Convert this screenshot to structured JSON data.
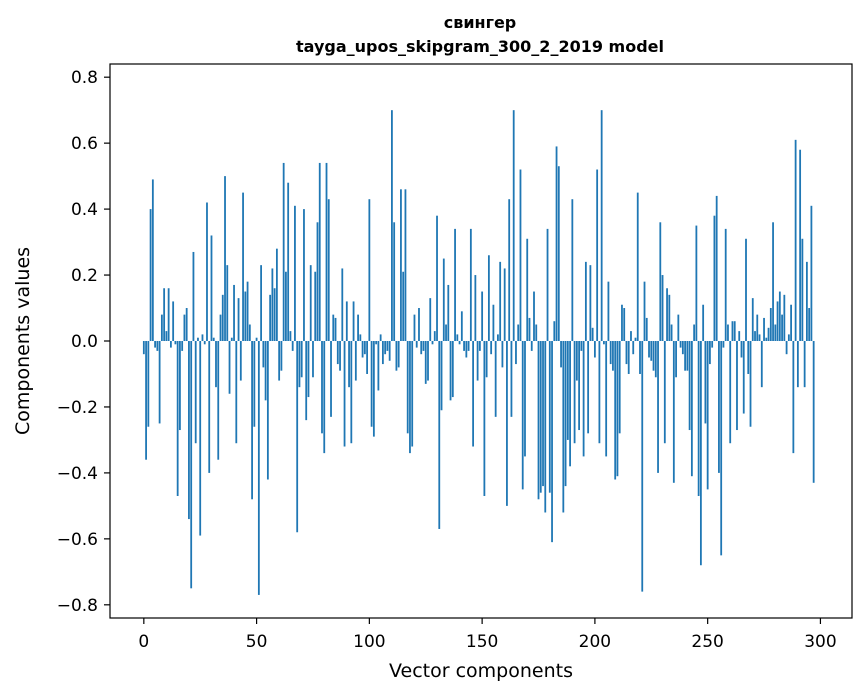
{
  "chart_data": {
    "type": "bar",
    "title_line1": "свингер",
    "title_line2": "tayga_upos_skipgram_300_2_2019 model",
    "xlabel": "Vector components",
    "ylabel": "Components values",
    "xlim": [
      -15,
      314
    ],
    "ylim": [
      -0.84,
      0.84
    ],
    "x_ticks": [
      0,
      50,
      100,
      150,
      200,
      250,
      300
    ],
    "x_tick_labels": [
      "0",
      "50",
      "100",
      "150",
      "200",
      "250",
      "300"
    ],
    "y_ticks": [
      0.8,
      0.6,
      0.4,
      0.2,
      0.0,
      -0.2,
      -0.4,
      -0.6,
      -0.8
    ],
    "y_tick_labels": [
      "0.8",
      "0.6",
      "0.4",
      "0.2",
      "0.0",
      "−0.2",
      "−0.4",
      "−0.6",
      "−0.8"
    ],
    "bar_color": "#1f77b4",
    "grid": false,
    "values": [
      -0.04,
      -0.36,
      -0.26,
      0.4,
      0.49,
      -0.02,
      -0.03,
      -0.25,
      0.08,
      0.16,
      0.03,
      0.16,
      -0.02,
      0.12,
      -0.01,
      -0.47,
      -0.27,
      -0.03,
      0.08,
      0.1,
      -0.54,
      -0.75,
      0.27,
      -0.31,
      0.01,
      -0.59,
      0.02,
      -0.01,
      0.42,
      -0.4,
      0.32,
      0.01,
      -0.14,
      -0.36,
      0.08,
      0.14,
      0.5,
      0.23,
      -0.16,
      0.01,
      0.17,
      -0.31,
      0.13,
      -0.12,
      0.45,
      0.15,
      0.18,
      0.05,
      -0.48,
      -0.26,
      0.01,
      -0.77,
      0.23,
      -0.08,
      -0.18,
      -0.42,
      0.14,
      0.22,
      0.16,
      0.28,
      -0.12,
      -0.09,
      0.54,
      0.21,
      0.48,
      0.03,
      -0.03,
      0.41,
      -0.58,
      -0.14,
      -0.11,
      0.4,
      -0.24,
      -0.17,
      0.23,
      -0.11,
      0.21,
      0.36,
      0.54,
      -0.28,
      -0.34,
      0.54,
      0.43,
      -0.23,
      0.08,
      0.07,
      -0.07,
      -0.09,
      0.22,
      -0.32,
      0.12,
      -0.14,
      -0.31,
      0.12,
      -0.12,
      0.08,
      0.02,
      -0.05,
      -0.04,
      -0.1,
      0.43,
      -0.26,
      -0.29,
      -0.01,
      -0.15,
      0.02,
      -0.07,
      -0.04,
      -0.03,
      -0.06,
      0.7,
      0.36,
      -0.09,
      -0.08,
      0.46,
      0.21,
      0.46,
      -0.28,
      -0.34,
      -0.32,
      0.08,
      -0.02,
      0.1,
      -0.04,
      -0.03,
      -0.13,
      -0.12,
      0.13,
      -0.01,
      0.03,
      0.38,
      -0.57,
      -0.21,
      0.25,
      0.05,
      0.17,
      -0.18,
      -0.17,
      0.34,
      0.02,
      -0.01,
      0.09,
      -0.03,
      -0.05,
      -0.03,
      0.34,
      -0.32,
      0.2,
      -0.12,
      -0.03,
      0.15,
      -0.47,
      -0.11,
      0.26,
      -0.04,
      0.11,
      -0.23,
      0.02,
      0.24,
      -0.08,
      0.22,
      -0.5,
      0.43,
      -0.23,
      0.7,
      -0.07,
      0.05,
      0.52,
      -0.45,
      -0.35,
      0.31,
      0.07,
      -0.03,
      0.15,
      0.05,
      -0.48,
      -0.46,
      -0.44,
      -0.52,
      0.34,
      -0.46,
      -0.61,
      0.06,
      0.59,
      0.53,
      -0.08,
      -0.52,
      -0.44,
      -0.3,
      -0.38,
      0.43,
      -0.31,
      -0.12,
      -0.27,
      -0.03,
      -0.35,
      0.24,
      -0.28,
      0.23,
      0.04,
      -0.05,
      0.52,
      -0.31,
      0.7,
      -0.01,
      -0.35,
      0.18,
      -0.07,
      -0.09,
      -0.42,
      -0.41,
      -0.28,
      0.11,
      0.1,
      -0.07,
      -0.1,
      0.03,
      -0.04,
      0.01,
      0.45,
      -0.1,
      -0.76,
      0.18,
      0.07,
      -0.05,
      -0.06,
      -0.09,
      -0.11,
      -0.4,
      0.36,
      0.2,
      -0.31,
      0.16,
      0.14,
      0.05,
      -0.43,
      -0.11,
      0.08,
      -0.02,
      -0.04,
      -0.09,
      -0.09,
      -0.27,
      -0.41,
      0.05,
      0.35,
      -0.47,
      -0.68,
      0.11,
      -0.25,
      -0.45,
      -0.07,
      -0.02,
      0.38,
      0.44,
      -0.4,
      -0.65,
      -0.02,
      0.34,
      0.05,
      -0.31,
      0.06,
      0.06,
      -0.27,
      0.03,
      -0.05,
      -0.22,
      0.31,
      -0.1,
      -0.26,
      0.13,
      0.03,
      0.08,
      0.02,
      -0.14,
      0.07,
      0.01,
      0.04,
      0.1,
      0.36,
      0.05,
      0.12,
      0.15,
      0.08,
      0.14,
      -0.04,
      0.02,
      0.11,
      -0.34,
      0.61,
      -0.14,
      0.58,
      0.31,
      -0.14,
      0.24,
      0.1,
      0.41,
      -0.43
    ]
  }
}
